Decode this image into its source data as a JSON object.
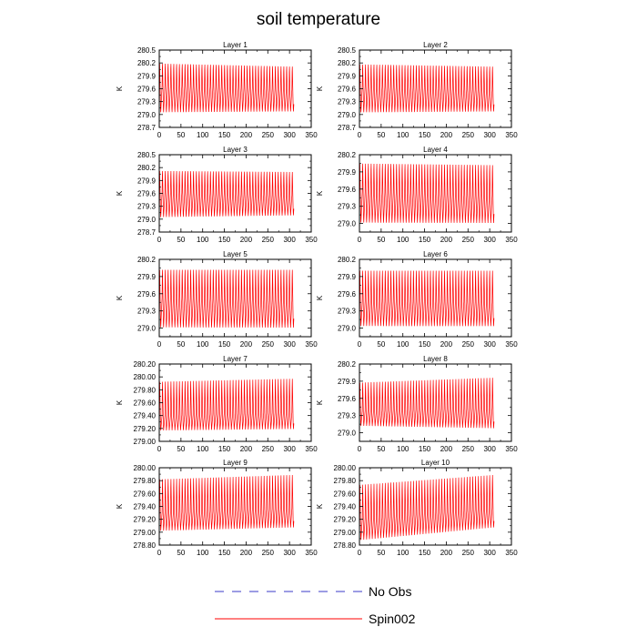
{
  "title": "soil temperature",
  "legend": [
    {
      "label": "No Obs",
      "color": "#3a3ac8",
      "style": "dashed"
    },
    {
      "label": "Spin002",
      "color": "#ff0000",
      "style": "solid"
    }
  ],
  "colors": {
    "series": "#ff0000",
    "nobs": "#3a3ac8",
    "axis": "#000000"
  },
  "chart_data": [
    {
      "type": "line",
      "title": "Layer 1",
      "ylabel": "K",
      "xlim": [
        0,
        350
      ],
      "xticks": [
        0,
        50,
        100,
        150,
        200,
        250,
        300,
        350
      ],
      "ylim": [
        278.7,
        280.5
      ],
      "yticks": [
        "278.7",
        "279.0",
        "279.3",
        "279.6",
        "279.9",
        "280.2",
        "280.5"
      ],
      "x_end": 310,
      "max_start": 280.3,
      "max_end": 280.22,
      "min_start": 279.0,
      "min_end": 279.03,
      "mean_start": 279.68,
      "mean_end": 279.58,
      "period": 6.5
    },
    {
      "type": "line",
      "title": "Layer 2",
      "ylabel": "K",
      "xlim": [
        0,
        350
      ],
      "xticks": [
        0,
        50,
        100,
        150,
        200,
        250,
        300,
        350
      ],
      "ylim": [
        278.7,
        280.5
      ],
      "yticks": [
        "278.7",
        "279.0",
        "279.3",
        "279.6",
        "279.9",
        "280.2",
        "280.5"
      ],
      "x_end": 310,
      "max_start": 280.28,
      "max_end": 280.22,
      "min_start": 279.0,
      "min_end": 279.03,
      "mean_start": 279.66,
      "mean_end": 279.56,
      "period": 6.5
    },
    {
      "type": "line",
      "title": "Layer 3",
      "ylabel": "K",
      "xlim": [
        0,
        350
      ],
      "xticks": [
        0,
        50,
        100,
        150,
        200,
        250,
        300,
        350
      ],
      "ylim": [
        278.7,
        280.5
      ],
      "yticks": [
        "278.7",
        "279.0",
        "279.3",
        "279.6",
        "279.9",
        "280.2",
        "280.5"
      ],
      "x_end": 310,
      "max_start": 280.23,
      "max_end": 280.2,
      "min_start": 279.0,
      "min_end": 279.05,
      "mean_start": 279.62,
      "mean_end": 279.55,
      "period": 6.5
    },
    {
      "type": "line",
      "title": "Layer 4",
      "ylabel": "K",
      "xlim": [
        0,
        350
      ],
      "xticks": [
        0,
        50,
        100,
        150,
        200,
        250,
        300,
        350
      ],
      "ylim": [
        278.85,
        280.2
      ],
      "yticks": [
        "279.0",
        "279.3",
        "279.6",
        "279.9",
        "280.2"
      ],
      "x_end": 310,
      "max_start": 280.15,
      "max_end": 280.12,
      "min_start": 278.97,
      "min_end": 278.97,
      "mean_start": 279.55,
      "mean_end": 279.48,
      "period": 6.5
    },
    {
      "type": "line",
      "title": "Layer 5",
      "ylabel": "K",
      "xlim": [
        0,
        350
      ],
      "xticks": [
        0,
        50,
        100,
        150,
        200,
        250,
        300,
        350
      ],
      "ylim": [
        278.85,
        280.2
      ],
      "yticks": [
        "279.0",
        "279.3",
        "279.6",
        "279.9",
        "280.2"
      ],
      "x_end": 310,
      "max_start": 280.12,
      "max_end": 280.12,
      "min_start": 278.97,
      "min_end": 278.97,
      "mean_start": 279.53,
      "mean_end": 279.48,
      "period": 6.5
    },
    {
      "type": "line",
      "title": "Layer 6",
      "ylabel": "K",
      "xlim": [
        0,
        350
      ],
      "xticks": [
        0,
        50,
        100,
        150,
        200,
        250,
        300,
        350
      ],
      "ylim": [
        278.85,
        280.2
      ],
      "yticks": [
        "279.0",
        "279.3",
        "279.6",
        "279.9",
        "280.2"
      ],
      "x_end": 310,
      "max_start": 280.1,
      "max_end": 280.1,
      "min_start": 279.0,
      "min_end": 279.0,
      "mean_start": 279.47,
      "mean_end": 279.45,
      "period": 6.5
    },
    {
      "type": "line",
      "title": "Layer 7",
      "ylabel": "K",
      "xlim": [
        0,
        350
      ],
      "xticks": [
        0,
        50,
        100,
        150,
        200,
        250,
        300,
        350
      ],
      "ylim": [
        279.0,
        280.2
      ],
      "yticks": [
        "279.00",
        "279.20",
        "279.40",
        "279.60",
        "279.80",
        "280.00",
        "280.20"
      ],
      "x_end": 310,
      "max_start": 280.0,
      "max_end": 280.05,
      "min_start": 279.15,
      "min_end": 279.17,
      "mean_start": 279.4,
      "mean_end": 279.45,
      "period": 6.5
    },
    {
      "type": "line",
      "title": "Layer 8",
      "ylabel": "K",
      "xlim": [
        0,
        350
      ],
      "xticks": [
        0,
        50,
        100,
        150,
        200,
        250,
        300,
        350
      ],
      "ylim": [
        278.85,
        280.2
      ],
      "yticks": [
        "279.0",
        "279.3",
        "279.6",
        "279.9",
        "280.2"
      ],
      "x_end": 310,
      "max_start": 279.95,
      "max_end": 280.05,
      "min_start": 279.1,
      "min_end": 279.05,
      "mean_start": 279.38,
      "mean_end": 279.43,
      "period": 6.5
    },
    {
      "type": "line",
      "title": "Layer 9",
      "ylabel": "K",
      "xlim": [
        0,
        350
      ],
      "xticks": [
        0,
        50,
        100,
        150,
        200,
        250,
        300,
        350
      ],
      "ylim": [
        278.8,
        280.0
      ],
      "yticks": [
        "278.80",
        "279.00",
        "279.20",
        "279.40",
        "279.60",
        "279.80",
        "280.00"
      ],
      "x_end": 310,
      "max_start": 279.9,
      "max_end": 279.97,
      "min_start": 279.0,
      "min_end": 279.05,
      "mean_start": 279.3,
      "mean_end": 279.37,
      "period": 6.5
    },
    {
      "type": "line",
      "title": "Layer 10",
      "ylabel": "K",
      "xlim": [
        0,
        350
      ],
      "xticks": [
        0,
        50,
        100,
        150,
        200,
        250,
        300,
        350
      ],
      "ylim": [
        278.8,
        280.0
      ],
      "yticks": [
        "278.80",
        "279.00",
        "279.20",
        "279.40",
        "279.60",
        "279.80",
        "280.00"
      ],
      "x_end": 310,
      "max_start": 279.82,
      "max_end": 279.97,
      "min_start": 278.85,
      "min_end": 279.05,
      "mean_start": 279.2,
      "mean_end": 279.37,
      "period": 6.5
    }
  ]
}
